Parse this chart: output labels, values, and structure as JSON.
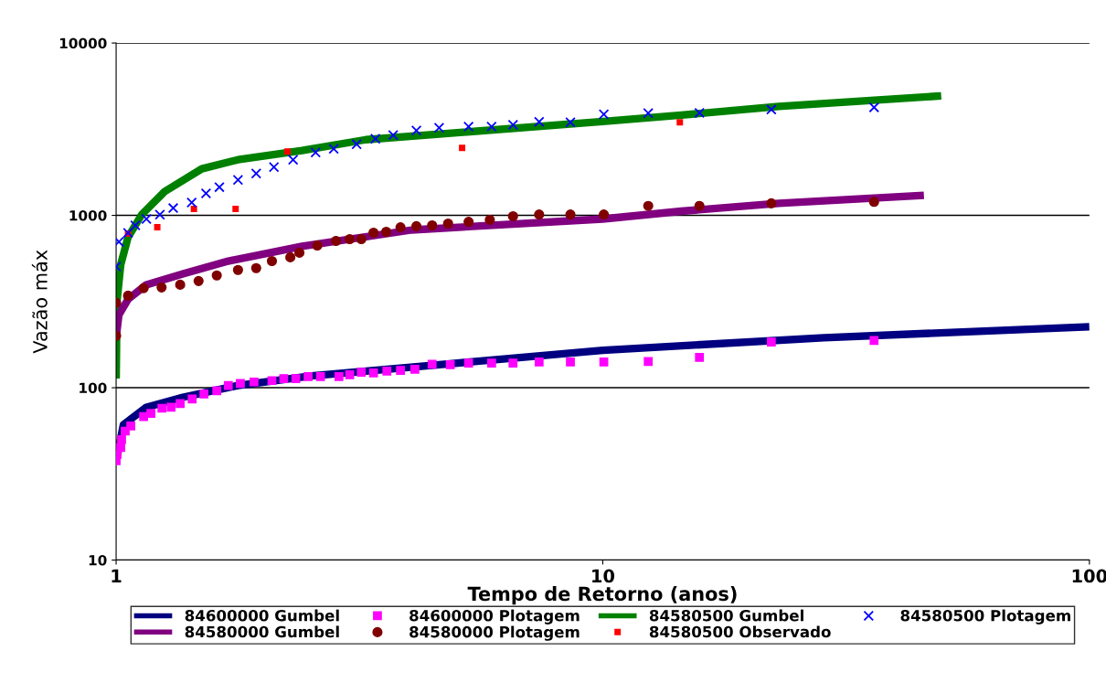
{
  "chart_data": {
    "type": "line",
    "xlabel": "Tempo de Retorno (anos)",
    "ylabel": "Vazão máx",
    "log": "xy",
    "xlim": [
      1,
      100
    ],
    "xticks": [
      1,
      10,
      100
    ],
    "ylim": [
      10,
      10000
    ],
    "yticks": [
      10,
      100,
      1000,
      10000
    ],
    "grid": "y",
    "legend": "bottom",
    "series": [
      {
        "name": "84600000 Gumbel",
        "color": "#000080",
        "marker": "none",
        "x": [
          1.005,
          1.035,
          1.154,
          1.372,
          1.78,
          2.52,
          5.03,
          10,
          28.5,
          100
        ],
        "values": [
          40,
          61,
          77,
          88,
          103,
          117,
          139,
          165,
          195,
          226
        ]
      },
      {
        "name": "84600000 Plotagem",
        "type": "scatter",
        "color": "#ff00ff",
        "marker": "square",
        "x": [
          1.0,
          1.004,
          1.022,
          1.026,
          1.044,
          1.072,
          1.139,
          1.179,
          1.242,
          1.297,
          1.354,
          1.433,
          1.515,
          1.61,
          1.7,
          1.8,
          1.92,
          2.09,
          2.21,
          2.34,
          2.48,
          2.63,
          2.87,
          3.02,
          3.19,
          3.38,
          3.6,
          3.84,
          4.11,
          4.46,
          4.86,
          5.3,
          5.91,
          6.54,
          7.4,
          8.58,
          10.05,
          12.4,
          15.8,
          22.2,
          36.1
        ],
        "values": [
          37.7,
          41,
          45,
          50,
          56,
          60,
          68,
          71,
          76,
          77,
          81,
          86,
          92,
          96,
          103,
          106,
          108,
          110,
          113,
          113,
          116,
          116,
          116,
          119,
          123,
          122,
          125,
          126,
          128,
          137,
          136,
          139,
          139,
          139,
          141,
          141,
          141,
          142,
          150,
          184,
          188
        ]
      },
      {
        "name": "84580500 Gumbel",
        "color": "#008000",
        "marker": "none",
        "x": [
          1.0,
          1.004,
          1.022,
          1.058,
          1.129,
          1.258,
          1.5,
          1.78,
          2.41,
          3.26,
          10,
          14.5,
          23,
          49.6
        ],
        "values": [
          113,
          318,
          518,
          747,
          1011,
          1374,
          1862,
          2103,
          2378,
          2750,
          3508,
          3819,
          4285,
          4933
        ]
      },
      {
        "name": "84580500 Plotagem",
        "type": "scatter",
        "color": "#0000ff",
        "marker": "cross",
        "x": [
          1.0,
          1.013,
          1.058,
          1.095,
          1.154,
          1.23,
          1.31,
          1.43,
          1.53,
          1.63,
          1.78,
          1.94,
          2.11,
          2.31,
          2.57,
          2.8,
          3.12,
          3.41,
          3.71,
          4.14,
          4.61,
          5.3,
          5.91,
          6.54,
          7.4,
          8.58,
          10.05,
          12.4,
          15.8,
          22.2,
          36.1
        ],
        "values": [
          505,
          703,
          792,
          875,
          953,
          1011,
          1102,
          1186,
          1340,
          1459,
          1607,
          1750,
          1905,
          2103,
          2316,
          2432,
          2588,
          2782,
          2921,
          3105,
          3222,
          3275,
          3275,
          3350,
          3494,
          3467,
          3855,
          3919,
          3936,
          4110,
          4236
        ]
      },
      {
        "name": "84580000 Gumbel",
        "color": "#800080",
        "marker": "none",
        "x": [
          1.0,
          1.013,
          1.058,
          1.154,
          1.372,
          1.7,
          2.41,
          4.05,
          10,
          14.5,
          23,
          45.7
        ],
        "values": [
          196,
          265,
          326,
          396,
          458,
          543,
          661,
          823,
          953,
          1057,
          1175,
          1307
        ]
      },
      {
        "name": "84580000 Plotagem",
        "type": "scatter",
        "color": "#800000",
        "marker": "circle",
        "x": [
          1.0,
          1.0,
          1.058,
          1.139,
          1.24,
          1.354,
          1.477,
          1.61,
          1.78,
          1.94,
          2.09,
          2.28,
          2.38,
          2.59,
          2.83,
          3.02,
          3.19,
          3.38,
          3.59,
          3.84,
          4.14,
          4.46,
          4.81,
          5.3,
          5.86,
          6.54,
          7.4,
          8.58,
          10.05,
          12.4,
          15.8,
          22.2,
          36.1
        ],
        "values": [
          200,
          311,
          342,
          378,
          382,
          396,
          416,
          448,
          482,
          494,
          543,
          571,
          607,
          669,
          711,
          728,
          728,
          793,
          803,
          853,
          865,
          875,
          896,
          918,
          942,
          988,
          1012,
          1012,
          1012,
          1135,
          1135,
          1175,
          1199
        ]
      },
      {
        "name": "84580500 Observado",
        "type": "scatter",
        "color": "#ff0000",
        "marker": "square",
        "x": [
          1.058,
          1.215,
          1.445,
          1.76,
          2.25,
          5.14,
          14.4
        ],
        "values": [
          784,
          853,
          1089,
          1089,
          2344,
          2466,
          3467
        ]
      }
    ]
  }
}
